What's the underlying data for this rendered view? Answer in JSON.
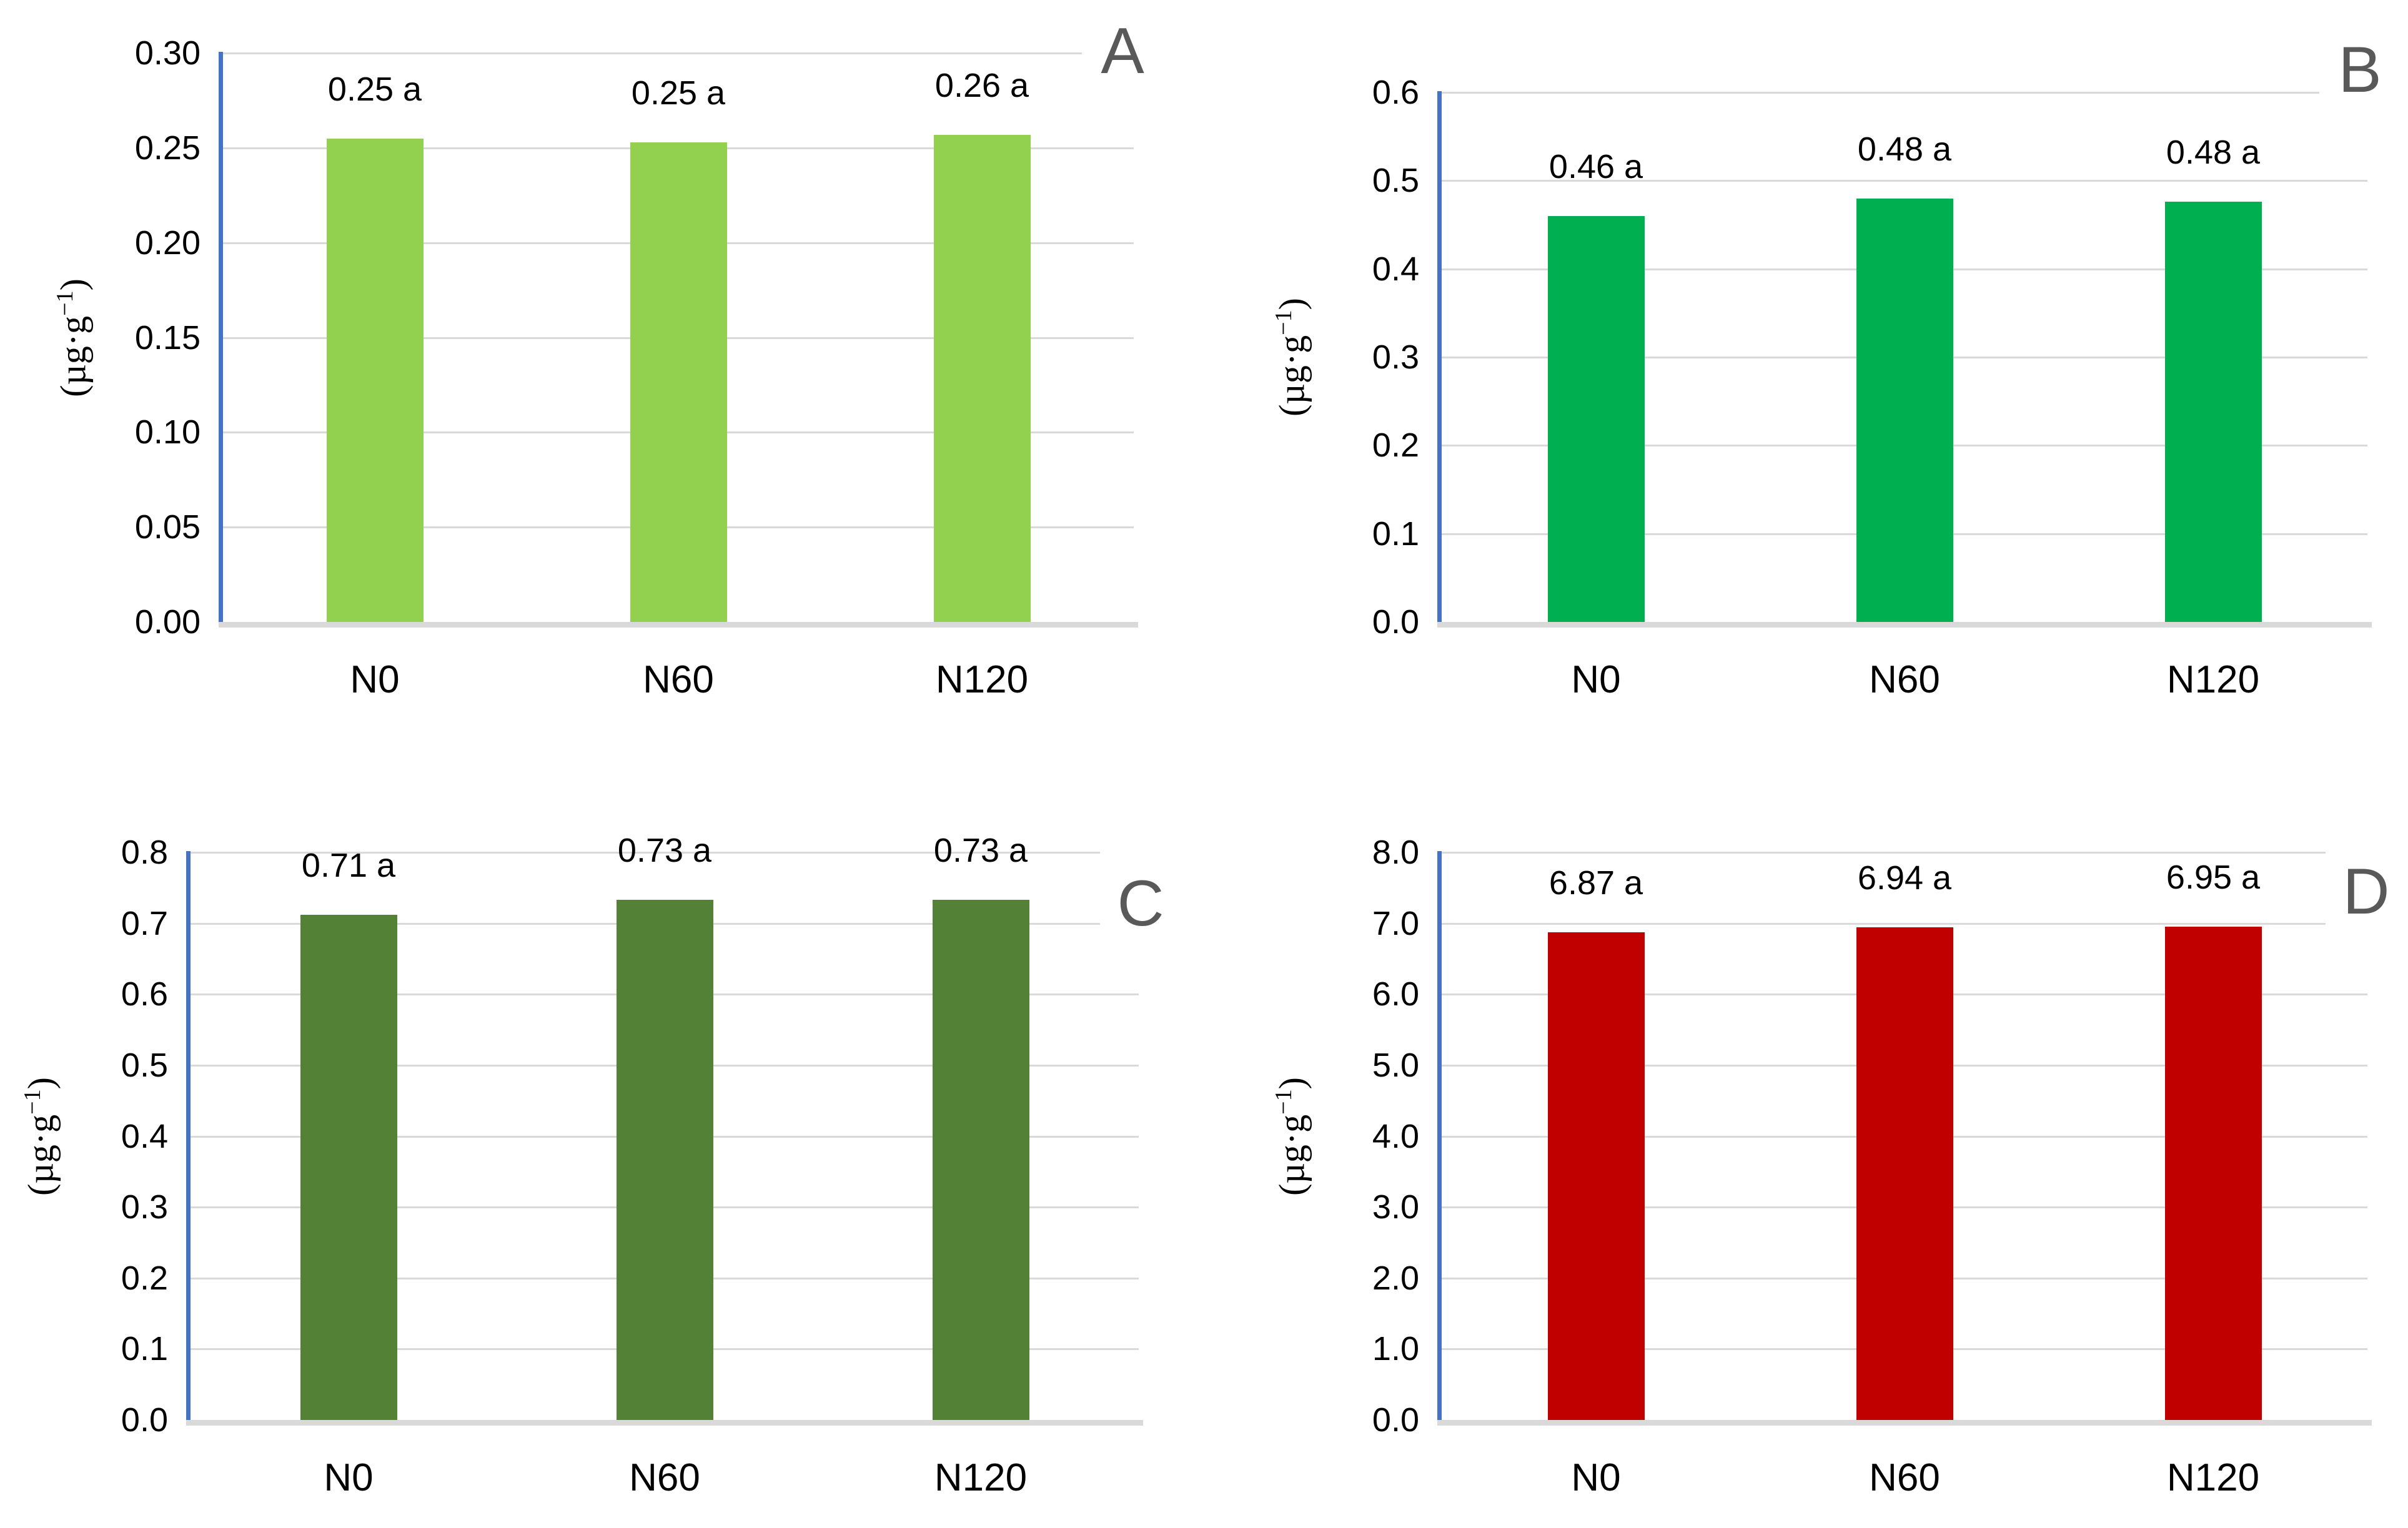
{
  "figure": {
    "background": "#FFFFFF",
    "y_axis_color": "#4472C4",
    "gridline_color": "#D9D9D9",
    "baseline_color": "#D9D9D9",
    "panel_letter_color": "#595959",
    "text_color": "#000000"
  },
  "chart_data": [
    {
      "type": "bar",
      "panel_label": "A",
      "title": "",
      "xlabel": "",
      "ylabel": {
        "prefix": "(µg·g",
        "superscript": "−1",
        "suffix": ")"
      },
      "categories": [
        "N0",
        "N60",
        "N120"
      ],
      "values": [
        0.255,
        0.253,
        0.257
      ],
      "bar_labels": [
        "0.25 a",
        "0.25 a",
        "0.26 a"
      ],
      "bar_color": "#92D050",
      "ylim": [
        0,
        0.3
      ],
      "yticks": [
        0,
        0.05,
        0.1,
        0.15,
        0.2,
        0.25,
        0.3
      ],
      "ytick_labels": [
        "0.00",
        "0.05",
        "0.10",
        "0.15",
        "0.20",
        "0.25",
        "0.30"
      ],
      "grid": true,
      "legend": "none"
    },
    {
      "type": "bar",
      "panel_label": "B",
      "title": "",
      "xlabel": "",
      "ylabel": {
        "prefix": "(µg·g",
        "superscript": "−1",
        "suffix": ")"
      },
      "categories": [
        "N0",
        "N60",
        "N120"
      ],
      "values": [
        0.46,
        0.48,
        0.476
      ],
      "bar_labels": [
        "0.46 a",
        "0.48 a",
        "0.48 a"
      ],
      "bar_color": "#00B050",
      "ylim": [
        0,
        0.6
      ],
      "yticks": [
        0,
        0.1,
        0.2,
        0.3,
        0.4,
        0.5,
        0.6
      ],
      "ytick_labels": [
        "0.0",
        "0.1",
        "0.2",
        "0.3",
        "0.4",
        "0.5",
        "0.6"
      ],
      "grid": true,
      "legend": "none"
    },
    {
      "type": "bar",
      "panel_label": "C",
      "title": "",
      "xlabel": "",
      "ylabel": {
        "prefix": "(µg·g",
        "superscript": "−1",
        "suffix": ")"
      },
      "categories": [
        "N0",
        "N60",
        "N120"
      ],
      "values": [
        0.712,
        0.733,
        0.733
      ],
      "bar_labels": [
        "0.71 a",
        "0.73 a",
        "0.73 a"
      ],
      "bar_color": "#538135",
      "ylim": [
        0,
        0.8
      ],
      "yticks": [
        0,
        0.1,
        0.2,
        0.3,
        0.4,
        0.5,
        0.6,
        0.7,
        0.8
      ],
      "ytick_labels": [
        "0.0",
        "0.1",
        "0.2",
        "0.3",
        "0.4",
        "0.5",
        "0.6",
        "0.7",
        "0.8"
      ],
      "grid": true,
      "legend": "none"
    },
    {
      "type": "bar",
      "panel_label": "D",
      "title": "",
      "xlabel": "",
      "ylabel": {
        "prefix": "(µg·g",
        "superscript": "−1",
        "suffix": ")"
      },
      "categories": [
        "N0",
        "N60",
        "N120"
      ],
      "values": [
        6.87,
        6.94,
        6.95
      ],
      "bar_labels": [
        "6.87 a",
        "6.94 a",
        "6.95 a"
      ],
      "bar_color": "#C00000",
      "ylim": [
        0,
        8.0
      ],
      "yticks": [
        0,
        1,
        2,
        3,
        4,
        5,
        6,
        7,
        8
      ],
      "ytick_labels": [
        "0.0",
        "1.0",
        "2.0",
        "3.0",
        "4.0",
        "5.0",
        "6.0",
        "7.0",
        "8.0"
      ],
      "grid": true,
      "legend": "none"
    }
  ]
}
